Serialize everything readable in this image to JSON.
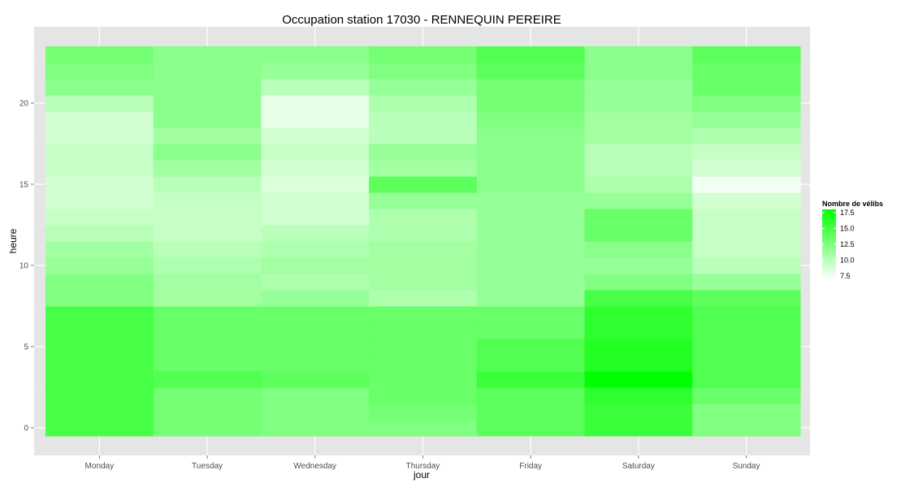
{
  "chart_data": {
    "type": "heatmap",
    "title": "Occupation station 17030 - RENNEQUIN PEREIRE",
    "xlabel": "jour",
    "ylabel": "heure",
    "categories": [
      "Monday",
      "Tuesday",
      "Wednesday",
      "Thursday",
      "Friday",
      "Saturday",
      "Sunday"
    ],
    "hours": [
      0,
      1,
      2,
      3,
      4,
      5,
      6,
      7,
      8,
      9,
      10,
      11,
      12,
      13,
      14,
      15,
      16,
      17,
      18,
      19,
      20,
      21,
      22,
      23
    ],
    "ylim": [
      -0.5,
      23.5
    ],
    "y_ticks": [
      0,
      5,
      10,
      15,
      20
    ],
    "grid": true,
    "legend": {
      "title": "Nombre de vélibs",
      "placement": "right",
      "ticks": [
        7.5,
        10.0,
        12.5,
        15.0,
        17.5
      ],
      "tick_labels": [
        "7.5",
        "10.0",
        "12.5",
        "15.0",
        "17.5"
      ],
      "min": 7,
      "max": 18,
      "low_color": "#ffffff",
      "high_color": "#00ff00"
    },
    "values": [
      [
        15.0,
        15.0,
        15.0,
        15.0,
        15.0,
        15.0,
        15.0,
        15.0,
        12.5,
        12.5,
        11.5,
        11.0,
        10.0,
        9.5,
        9.0,
        9.0,
        9.5,
        9.5,
        9.0,
        9.0,
        10.0,
        12.0,
        12.5,
        13.0
      ],
      [
        13.0,
        13.0,
        13.0,
        14.5,
        13.5,
        13.5,
        13.5,
        13.5,
        11.0,
        11.0,
        10.5,
        10.0,
        9.5,
        9.5,
        9.5,
        10.0,
        11.0,
        12.0,
        11.0,
        12.0,
        12.0,
        12.0,
        12.0,
        12.0
      ],
      [
        12.5,
        12.5,
        12.5,
        14.0,
        13.5,
        13.5,
        13.5,
        13.5,
        11.5,
        10.5,
        11.0,
        10.5,
        10.0,
        9.0,
        9.0,
        8.5,
        9.0,
        9.5,
        9.0,
        8.0,
        8.0,
        10.0,
        11.5,
        12.0
      ],
      [
        12.5,
        13.0,
        13.5,
        13.5,
        13.5,
        13.5,
        13.5,
        13.5,
        10.5,
        11.0,
        11.0,
        11.0,
        10.5,
        10.5,
        11.5,
        14.0,
        11.0,
        11.5,
        10.0,
        10.0,
        10.5,
        11.5,
        12.5,
        13.0
      ],
      [
        14.0,
        14.0,
        14.0,
        15.5,
        14.5,
        14.5,
        13.5,
        13.5,
        11.5,
        11.5,
        11.5,
        11.5,
        11.5,
        11.5,
        11.5,
        12.0,
        12.0,
        12.0,
        12.0,
        12.5,
        13.0,
        13.0,
        14.0,
        14.5
      ],
      [
        15.5,
        15.5,
        16.0,
        18.0,
        16.5,
        16.5,
        16.0,
        16.0,
        15.0,
        12.5,
        11.5,
        12.0,
        13.5,
        13.5,
        11.5,
        10.5,
        10.0,
        10.0,
        11.0,
        11.0,
        11.5,
        11.5,
        12.0,
        12.0
      ],
      [
        12.5,
        12.5,
        13.5,
        14.5,
        14.5,
        14.5,
        14.5,
        14.5,
        14.0,
        11.5,
        10.0,
        9.5,
        9.5,
        9.5,
        9.0,
        7.5,
        9.0,
        9.5,
        10.5,
        11.5,
        12.5,
        13.5,
        13.5,
        14.0
      ]
    ]
  }
}
